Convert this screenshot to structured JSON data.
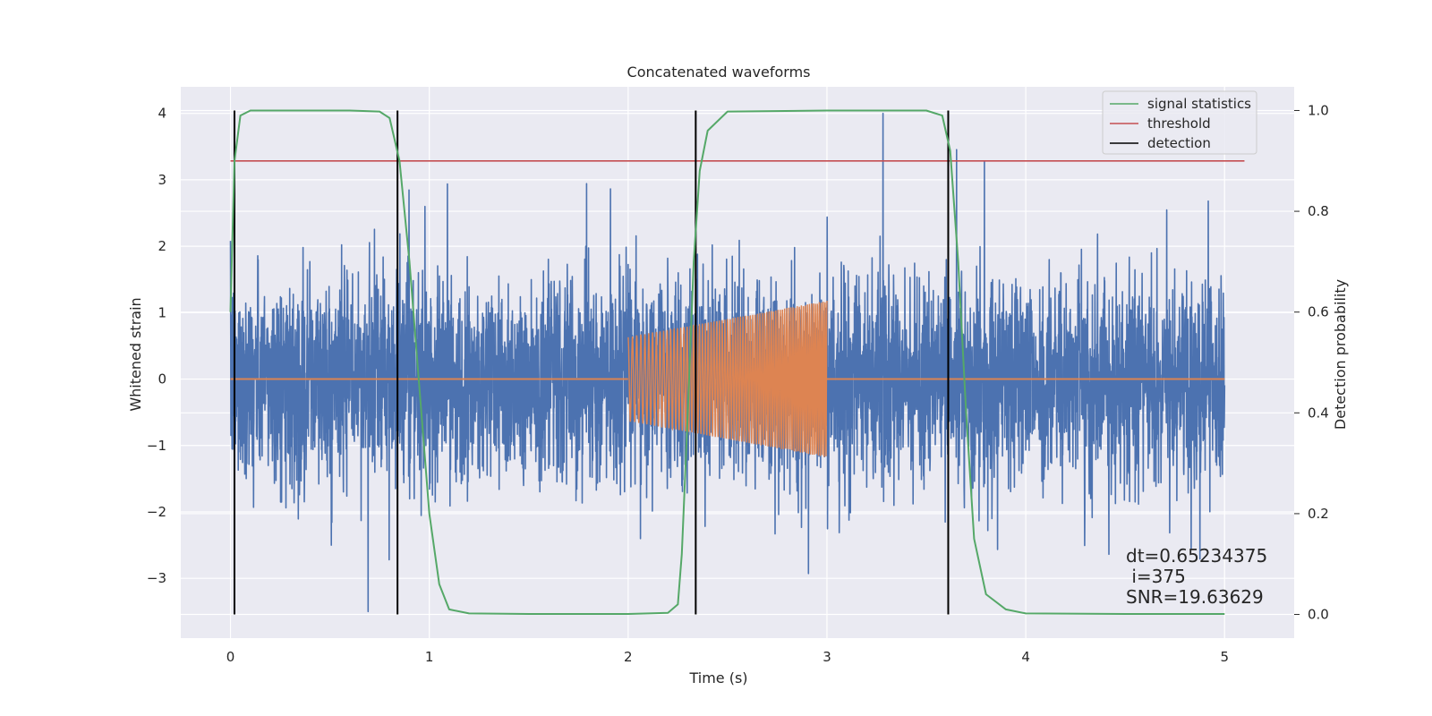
{
  "chart_data": {
    "type": "line",
    "title": "Concatenated waveforms",
    "xlabel": "Time (s)",
    "ylabel": "Whitened strain",
    "y2label": "Detection probability",
    "xlim": [
      -0.25,
      5.35
    ],
    "ylim": [
      -3.9,
      4.4
    ],
    "y2lim": [
      -0.047,
      1.047
    ],
    "x_ticks": [
      0,
      1,
      2,
      3,
      4,
      5
    ],
    "y_ticks": [
      -3,
      -2,
      -1,
      0,
      1,
      2,
      3,
      4
    ],
    "y2_ticks": [
      0.0,
      0.2,
      0.4,
      0.6,
      0.8,
      1.0
    ],
    "x_tick_labels": [
      "0",
      "1",
      "2",
      "3",
      "4",
      "5"
    ],
    "y_tick_labels": [
      "−3",
      "−2",
      "−1",
      "0",
      "1",
      "2",
      "3",
      "4"
    ],
    "y2_tick_labels": [
      "0.0",
      "0.2",
      "0.4",
      "0.6",
      "0.8",
      "1.0"
    ],
    "grid": true,
    "legend_position": "top-right",
    "colors": {
      "background": "#eaeaf2",
      "grid": "#ffffff",
      "noise": "#4c72b0",
      "injection": "#dd8452",
      "signal_statistics": "#55a868",
      "threshold": "#c44e52",
      "detection": "#000000"
    },
    "series": [
      {
        "key": "noise",
        "axis": "left",
        "x_range": [
          0,
          5
        ],
        "amplitude_rms": 0.75,
        "peak_range": [
          -3.5,
          4.0
        ]
      },
      {
        "key": "injection",
        "axis": "left",
        "x_range": [
          0,
          5
        ],
        "chirp_range": [
          2.0,
          3.0
        ],
        "amplitude_start": 0.63,
        "amplitude_end": 1.18
      },
      {
        "name": "signal statistics",
        "axis": "right",
        "x": [
          0,
          0.02,
          0.05,
          0.1,
          0.3,
          0.6,
          0.75,
          0.8,
          0.85,
          0.9,
          0.95,
          1.0,
          1.05,
          1.1,
          1.2,
          1.5,
          2.0,
          2.2,
          2.25,
          2.27,
          2.3,
          2.33,
          2.36,
          2.4,
          2.5,
          3.0,
          3.5,
          3.58,
          3.62,
          3.66,
          3.7,
          3.74,
          3.8,
          3.9,
          4.0,
          4.5,
          5.0
        ],
        "y": [
          0.6,
          0.9,
          0.99,
          1.0,
          1.0,
          1.0,
          0.998,
          0.985,
          0.9,
          0.7,
          0.45,
          0.2,
          0.06,
          0.01,
          0.002,
          0.001,
          0.001,
          0.003,
          0.02,
          0.12,
          0.4,
          0.7,
          0.88,
          0.96,
          0.998,
          1.0,
          1.0,
          0.99,
          0.92,
          0.7,
          0.4,
          0.15,
          0.04,
          0.01,
          0.002,
          0.001,
          0.001
        ]
      },
      {
        "name": "threshold",
        "axis": "right",
        "x": [
          0,
          5.1
        ],
        "y": [
          0.9,
          0.9
        ]
      },
      {
        "name": "detection",
        "axis": "right",
        "x": [
          0.02,
          0.84,
          2.34,
          3.61
        ],
        "y_range": [
          0.0,
          1.0
        ]
      }
    ],
    "legend": [
      "signal statistics",
      "threshold",
      "detection"
    ],
    "annotation": {
      "lines": [
        "dt=0.65234375",
        " i=375",
        "SNR=19.63629"
      ]
    }
  }
}
